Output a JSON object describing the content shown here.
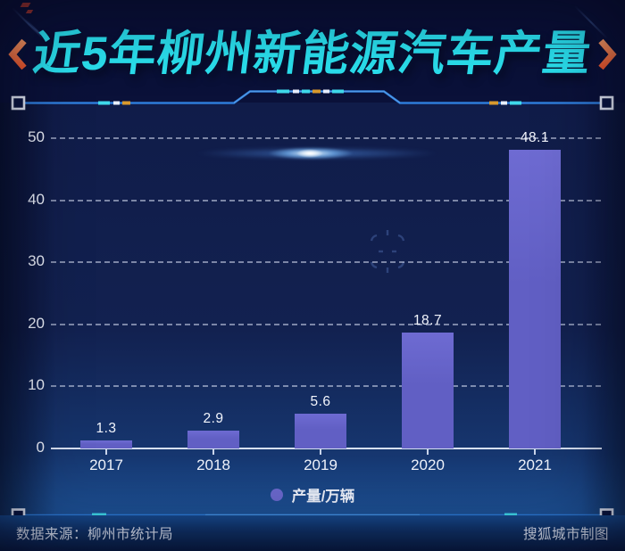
{
  "header": {
    "title": "近5年柳州新能源汽车产量"
  },
  "chart_data": {
    "type": "bar",
    "title": "近5年柳州新能源汽车产量",
    "categories": [
      "2017",
      "2018",
      "2019",
      "2020",
      "2021"
    ],
    "values": [
      1.3,
      2.9,
      5.6,
      18.7,
      48.1
    ],
    "value_labels": [
      "1.3",
      "2.9",
      "5.6",
      "18.7",
      "48.1"
    ],
    "ylim": [
      0,
      50
    ],
    "yticks": [
      0,
      10,
      20,
      30,
      40,
      50
    ],
    "grid": "horizontal-dashed",
    "legend_position": "bottom-center",
    "legend": [
      {
        "label": "产量/万辆",
        "color": "#6a68cc"
      }
    ],
    "bar_color": "#615fc4"
  },
  "footer": {
    "source": "数据来源：柳州市统计局",
    "credit": "搜狐城市制图"
  },
  "colors": {
    "title": "#2ae0ee",
    "accent_orange": "#ff7443",
    "frame_line": "#2e7cd9",
    "accent_cyan": "#3fd9ea",
    "background": "#0a1036",
    "bar": "#615fc4"
  }
}
